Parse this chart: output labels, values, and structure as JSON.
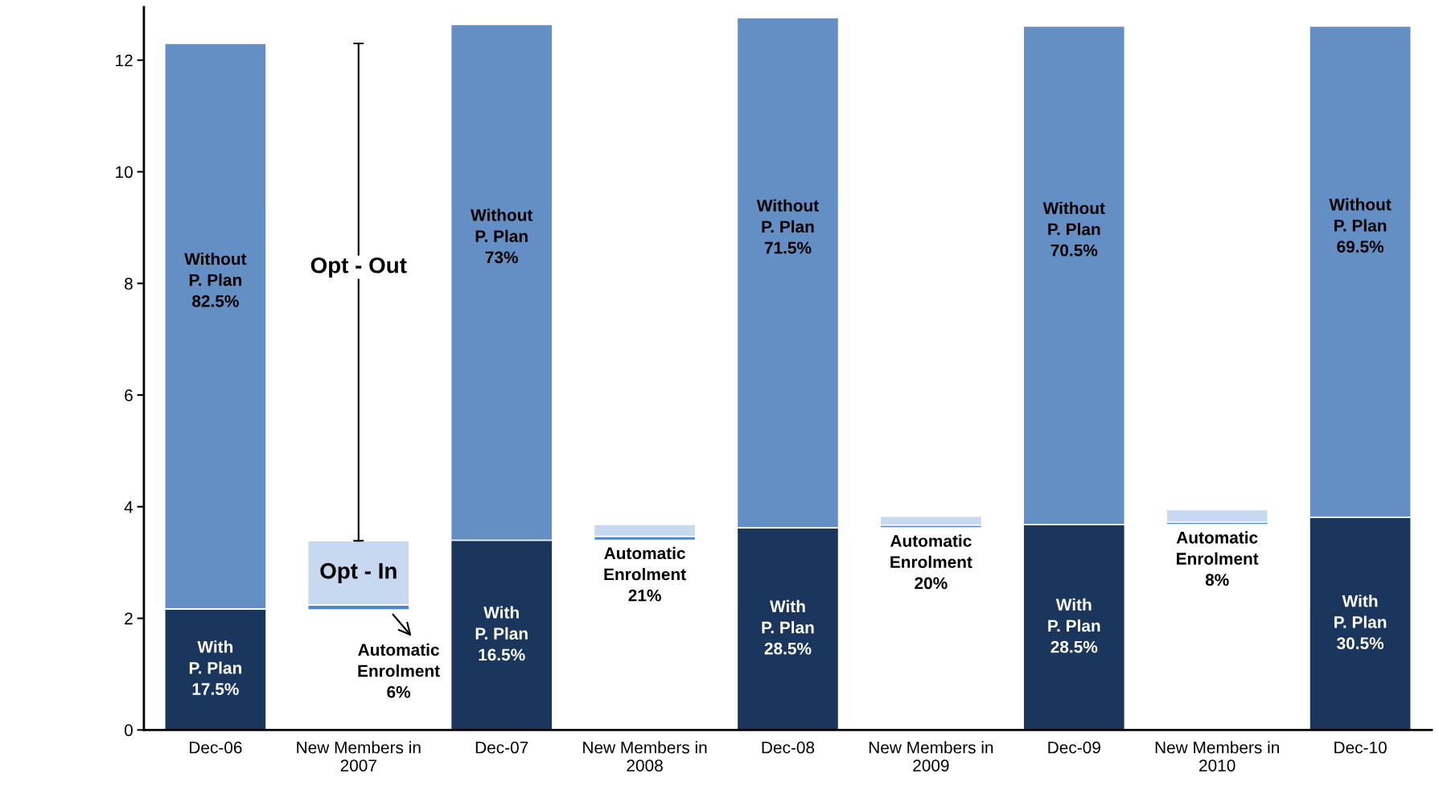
{
  "chart_data": {
    "type": "bar",
    "categories": [
      "Dec-06",
      "New Members in\n2007",
      "Dec-07",
      "New Members in\n2008",
      "Dec-08",
      "New Members in\n2009",
      "Dec-09",
      "New Members in\n2010",
      "Dec-10"
    ],
    "series": [
      {
        "base": [
          0,
          2.15,
          0,
          3.4,
          0,
          3.62,
          0,
          3.68,
          0
        ],
        "colors": [
          "#1a365d",
          "#4a86cf",
          "#1a365d",
          "#4a86cf",
          "#1a365d",
          "#4a86cf",
          "#1a365d",
          "#4a86cf",
          "#1a365d"
        ],
        "values": [
          2.17,
          0.09,
          3.4,
          0.07,
          3.62,
          0.05,
          3.68,
          0.04,
          3.81
        ],
        "value_labels": [
          "With\nP. Plan\n17.5%",
          "Automatic\nEnrolment\n6%",
          "With\nP. Plan\n16.5%",
          "Automatic\nEnrolment\n21%",
          "With\nP. Plan\n28.5%",
          "Automatic\nEnrolment\n20%",
          "With\nP. Plan\n28.5%",
          "Automatic\nEnrolment\n8%",
          "With\nP. Plan\n30.5%"
        ]
      },
      {
        "base": [
          2.17,
          2.24,
          3.4,
          3.47,
          3.62,
          3.67,
          3.68,
          3.72,
          3.81
        ],
        "colors": [
          "#648fc4",
          "#c6d9f1",
          "#648fc4",
          "#c6d9f1",
          "#648fc4",
          "#c6d9f1",
          "#648fc4",
          "#c6d9f1",
          "#648fc4"
        ],
        "values": [
          10.13,
          1.15,
          9.24,
          0.21,
          9.14,
          0.16,
          8.93,
          0.23,
          8.8
        ],
        "value_labels": [
          "Without\nP. Plan\n82.5%",
          "Opt - In",
          "Without\nP. Plan\n73%",
          null,
          "Without\nP. Plan\n71.5%",
          null,
          "Without\nP. Plan\n70.5%",
          null,
          "Without\nP. Plan\n69.5%"
        ]
      }
    ],
    "annotations": [
      "Opt - Out"
    ],
    "ylim": [
      0,
      12.95
    ],
    "yticks": [
      0,
      2,
      4,
      6,
      8,
      10,
      12
    ],
    "grid": false,
    "legend": false
  }
}
